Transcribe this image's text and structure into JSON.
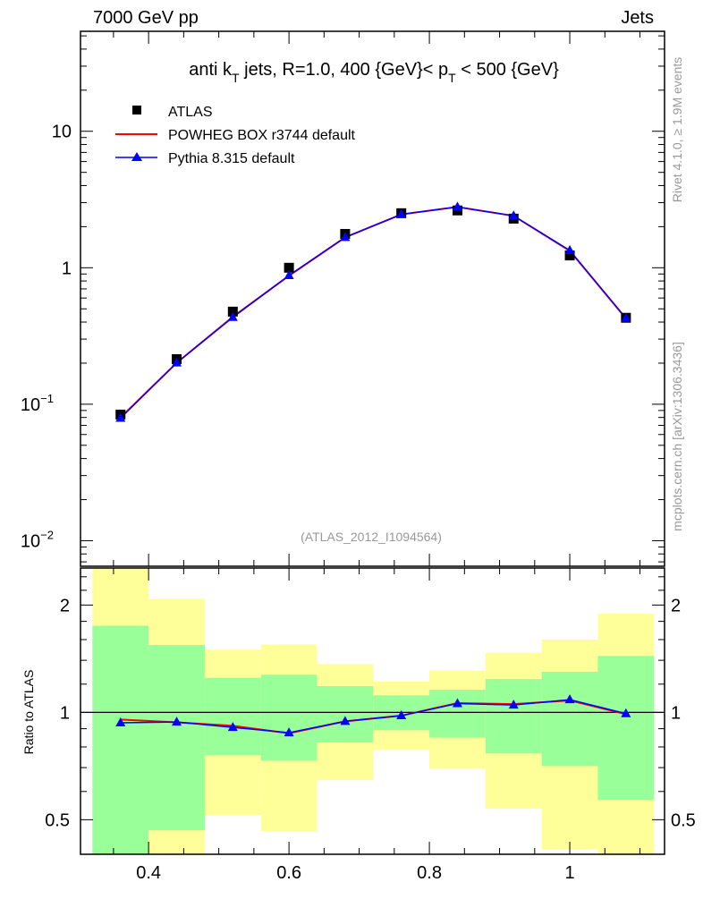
{
  "header": {
    "left": "7000 GeV pp",
    "right": "Jets"
  },
  "side_labels": {
    "rivet": "Rivet 4.1.0, ≥ 1.9M events",
    "mcplots": "mcplots.cern.ch [arXiv:1306.3436]"
  },
  "colors": {
    "data": "#000000",
    "powheg": "#ff0000",
    "pythia": "#0000ff",
    "band_inner": "#99ff99",
    "band_outer": "#ffff99",
    "watermark": "#999999"
  },
  "chart_data": [
    {
      "type": "line",
      "panel": "main",
      "title": "anti k_T jets, R=1.0,  400 {GeV}< p_T < 500 {GeV}",
      "title_parts": {
        "a": "anti k",
        "sub1": "T",
        "b": " jets, R=1.0,  400 {GeV}< p",
        "sub2": "T",
        "c": " < 500 {GeV}"
      },
      "watermark": "(ATLAS_2012_I1094564)",
      "xlim": [
        0.303,
        1.135
      ],
      "ylim": [
        0.0065,
        54
      ],
      "yscale": "log",
      "yticks": [
        {
          "value": 10,
          "label": "10",
          "exp": ""
        },
        {
          "value": 1,
          "label": "1",
          "exp": ""
        },
        {
          "value": 0.1,
          "label": "10",
          "exp": "−1"
        },
        {
          "value": 0.01,
          "label": "10",
          "exp": "−2"
        }
      ],
      "legend_position": "top-left",
      "x": [
        0.36,
        0.44,
        0.52,
        0.6,
        0.68,
        0.76,
        0.84,
        0.92,
        1.0,
        1.08
      ],
      "series": [
        {
          "name": "ATLAS",
          "style": "square-markers",
          "values": [
            0.084,
            0.214,
            0.477,
            1.0,
            1.77,
            2.51,
            2.63,
            2.29,
            1.23,
            0.43
          ]
        },
        {
          "name": "POWHEG BOX r3744 default",
          "style": "red-line",
          "values": [
            0.08,
            0.201,
            0.437,
            0.874,
            1.67,
            2.46,
            2.79,
            2.4,
            1.33,
            0.425
          ]
        },
        {
          "name": "Pythia 8.315 default",
          "style": "blue-line-triangles",
          "values": [
            0.079,
            0.201,
            0.433,
            0.877,
            1.67,
            2.46,
            2.79,
            2.4,
            1.34,
            0.427
          ]
        }
      ]
    },
    {
      "type": "line",
      "panel": "ratio",
      "ylabel": "Ratio to ATLAS",
      "xlim": [
        0.303,
        1.135
      ],
      "ylim": [
        0.4,
        2.54
      ],
      "yscale": "log",
      "xticks": [
        {
          "value": 0.4,
          "label": "0.4"
        },
        {
          "value": 0.6,
          "label": "0.6"
        },
        {
          "value": 0.8,
          "label": "0.8"
        },
        {
          "value": 1.0,
          "label": "1"
        }
      ],
      "yticks": [
        {
          "value": 0.5,
          "label": "0.5"
        },
        {
          "value": 1,
          "label": "1"
        },
        {
          "value": 2,
          "label": "2"
        }
      ],
      "bin_edges": [
        0.32,
        0.4,
        0.48,
        0.56,
        0.64,
        0.72,
        0.8,
        0.88,
        0.96,
        1.04,
        1.12
      ],
      "band_inner": {
        "low": [
          0.3,
          0.467,
          0.758,
          0.732,
          0.823,
          0.891,
          0.85,
          0.767,
          0.707,
          0.568
        ],
        "high": [
          1.75,
          1.545,
          1.25,
          1.275,
          1.185,
          1.116,
          1.157,
          1.24,
          1.3,
          1.44
        ]
      },
      "band_outer": {
        "low": [
          0.3,
          0.3,
          0.515,
          0.464,
          0.646,
          0.785,
          0.695,
          0.537,
          0.413,
          0.3
        ],
        "high": [
          2.6,
          2.08,
          1.5,
          1.55,
          1.366,
          1.22,
          1.31,
          1.47,
          1.6,
          1.89
        ]
      },
      "x": [
        0.36,
        0.44,
        0.52,
        0.6,
        0.68,
        0.76,
        0.84,
        0.92,
        1.0,
        1.08
      ],
      "series": [
        {
          "name": "POWHEG BOX r3744 default",
          "values": [
            0.955,
            0.938,
            0.917,
            0.874,
            0.944,
            0.979,
            1.062,
            1.055,
            1.08,
            0.988
          ]
        },
        {
          "name": "Pythia 8.315 default",
          "values": [
            0.935,
            0.94,
            0.908,
            0.877,
            0.944,
            0.979,
            1.059,
            1.049,
            1.086,
            0.992
          ]
        }
      ]
    }
  ]
}
